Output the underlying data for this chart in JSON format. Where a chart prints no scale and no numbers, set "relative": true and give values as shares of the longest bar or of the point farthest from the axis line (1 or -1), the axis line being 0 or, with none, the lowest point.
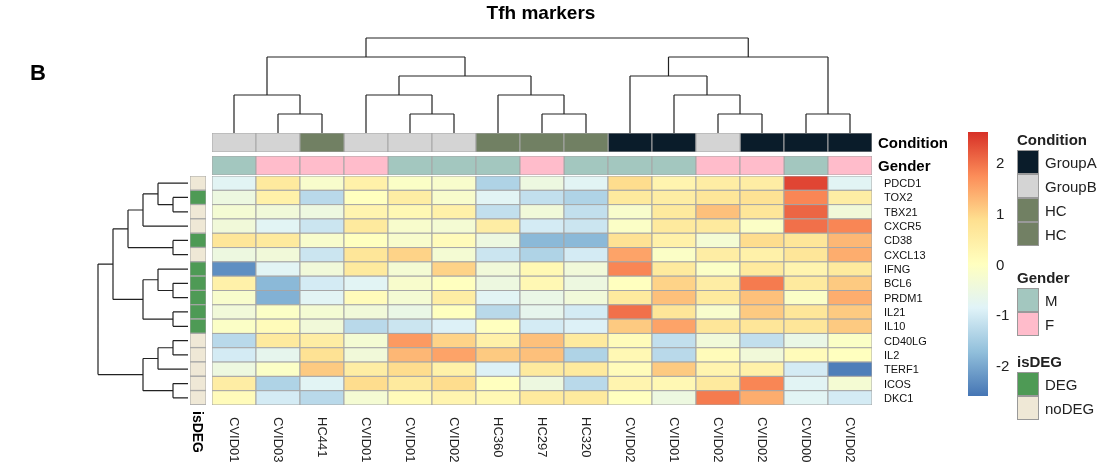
{
  "chart_data": [
    {
      "type": "heatmap",
      "annotations": [
        "B"
      ],
      "categories": [
        "CVID01",
        "CVID03",
        "HC441",
        "CVID01",
        "CVID01",
        "CVID02",
        "HC360",
        "HC297",
        "HC320",
        "CVID02",
        "CVID01",
        "CVID02",
        "CVID02",
        "CVID00",
        "CVID02"
      ],
      "y_categories": [
        "PDCD1",
        "TOX2",
        "TBX21",
        "CXCR5",
        "CD38",
        "CXCL13",
        "IFNG",
        "BCL6",
        "PRDM1",
        "IL21",
        "IL10",
        "CD40LG",
        "IL2",
        "TERF1",
        "ICOS",
        "DKC1"
      ],
      "cells": [
        [
          -0.8,
          0.6,
          -0.2,
          0.4,
          -0.1,
          -0.2,
          -1.4,
          -0.5,
          -0.8,
          0.9,
          0.3,
          0.5,
          0.5,
          2.4,
          -0.8
        ],
        [
          -0.5,
          0.4,
          -1.3,
          0.0,
          0.5,
          -0.2,
          -0.8,
          -1.2,
          -1.4,
          0.6,
          0.5,
          0.7,
          0.8,
          1.8,
          0.5
        ],
        [
          -0.3,
          -0.4,
          -0.5,
          0.3,
          0.2,
          0.4,
          -1.2,
          -0.4,
          -1.2,
          -0.2,
          0.6,
          1.2,
          0.7,
          2.1,
          -0.4
        ],
        [
          -0.4,
          -0.8,
          -1.1,
          0.6,
          -0.2,
          -0.3,
          0.5,
          -1.0,
          -1.1,
          -0.1,
          0.6,
          0.6,
          -0.1,
          2.0,
          1.8
        ],
        [
          0.7,
          0.6,
          -0.2,
          0.0,
          -0.2,
          0.1,
          -0.5,
          -1.8,
          -1.8,
          0.8,
          0.4,
          -0.3,
          0.9,
          0.7,
          1.3
        ],
        [
          -0.5,
          -0.4,
          -1.1,
          0.7,
          1.0,
          -0.3,
          -1.1,
          -1.4,
          -1.0,
          1.5,
          -0.1,
          0.5,
          0.4,
          0.7,
          1.4
        ],
        [
          -2.3,
          -0.8,
          -0.4,
          0.6,
          -0.3,
          1.0,
          -0.4,
          0.2,
          -0.4,
          1.8,
          0.6,
          -0.1,
          0.6,
          0.3,
          0.6
        ],
        [
          0.4,
          -1.8,
          -1.0,
          -0.8,
          -0.2,
          0.0,
          -0.5,
          0.2,
          -0.5,
          0.0,
          1.0,
          0.5,
          1.9,
          0.6,
          1.1
        ],
        [
          -0.2,
          -1.9,
          -0.8,
          0.1,
          -0.3,
          0.5,
          -0.8,
          -0.6,
          -0.4,
          0.6,
          1.2,
          0.6,
          1.2,
          -0.1,
          1.4
        ],
        [
          -0.4,
          -0.1,
          -0.3,
          -0.4,
          -0.6,
          0.0,
          -1.3,
          -0.7,
          -1.0,
          2.0,
          0.7,
          -0.2,
          1.1,
          0.7,
          1.1
        ],
        [
          -0.1,
          0.1,
          -0.4,
          -1.3,
          -1.1,
          -0.9,
          0.0,
          -1.0,
          -0.9,
          1.1,
          1.5,
          0.7,
          0.7,
          0.7,
          1.1
        ],
        [
          -1.3,
          0.6,
          0.5,
          -0.3,
          1.6,
          1.0,
          0.4,
          1.2,
          0.6,
          0.1,
          -1.2,
          -0.4,
          -1.2,
          -0.6,
          -0.1
        ],
        [
          -1.0,
          -0.7,
          0.8,
          -0.4,
          1.3,
          1.5,
          1.1,
          1.2,
          -1.4,
          0.2,
          -1.3,
          0.1,
          -0.4,
          0.1,
          0.0
        ],
        [
          -0.5,
          -0.1,
          1.1,
          0.5,
          0.9,
          0.4,
          -0.9,
          0.6,
          0.6,
          0.1,
          1.1,
          0.3,
          0.4,
          -1.0,
          -2.5
        ],
        [
          0.5,
          -1.4,
          -0.8,
          0.9,
          0.6,
          0.9,
          0.0,
          -0.5,
          -1.3,
          0.3,
          0.2,
          0.6,
          1.8,
          -0.8,
          -0.3
        ],
        [
          0.1,
          -1.0,
          -1.3,
          -0.3,
          0.1,
          0.3,
          0.2,
          0.6,
          0.6,
          0.0,
          -0.5,
          1.9,
          1.4,
          -0.8,
          -1.0
        ]
      ],
      "clim": [
        -2.6,
        2.6
      ],
      "cticks": [
        -2,
        -1,
        0,
        1,
        2
      ]
    },
    {
      "type": "bar",
      "title": "Tfh markers",
      "stacked": true,
      "relative": true,
      "ylabel": "Condition",
      "legend_title": "Condition",
      "legend": "right",
      "categories": [
        null,
        null,
        null,
        null,
        null,
        null,
        null,
        null,
        null,
        null,
        null,
        null,
        null,
        null,
        null
      ],
      "series": [
        {
          "name": "GroupA",
          "color": "#0a1c2a",
          "values": [
            null,
            null,
            null,
            null,
            null,
            null,
            null,
            null,
            null,
            1,
            1,
            null,
            1,
            1,
            1
          ]
        },
        {
          "name": "GroupB",
          "color": "#d4d4d4",
          "values": [
            1,
            1,
            null,
            1,
            1,
            1,
            null,
            null,
            null,
            null,
            null,
            1,
            null,
            null,
            null
          ]
        },
        {
          "name": "HC",
          "color": "#718063",
          "values": [
            null,
            null,
            1,
            null,
            null,
            null,
            1,
            1,
            1,
            null,
            null,
            null,
            null,
            null,
            null
          ]
        },
        {
          "name": "HC",
          "color": "#728064",
          "values": [
            null,
            null,
            null,
            null,
            null,
            null,
            null,
            null,
            null,
            null,
            null,
            null,
            null,
            null,
            null
          ]
        }
      ]
    },
    {
      "type": "bar",
      "stacked": true,
      "relative": true,
      "ylabel": "Gender",
      "legend_title": "Gender",
      "legend": "right",
      "categories": [
        null,
        null,
        null,
        null,
        null,
        null,
        null,
        null,
        null,
        null,
        null,
        null,
        null,
        null,
        null
      ],
      "series": [
        {
          "name": "M",
          "color": "#a3c7bf",
          "values": [
            1,
            null,
            null,
            null,
            1,
            1,
            1,
            null,
            1,
            1,
            1,
            null,
            null,
            1,
            null
          ]
        },
        {
          "name": "F",
          "color": "#ffbccb",
          "values": [
            null,
            1,
            1,
            1,
            null,
            null,
            null,
            1,
            null,
            null,
            null,
            1,
            1,
            null,
            1
          ]
        }
      ]
    },
    {
      "type": "bar",
      "stacked": true,
      "relative": true,
      "orientation": "horizontal",
      "annotations": [
        "isDEG"
      ],
      "legend_title": "isDEG",
      "legend": "right",
      "categories": [
        null,
        null,
        null,
        null,
        null,
        null,
        null,
        null,
        null,
        null,
        null,
        null,
        null,
        null,
        null,
        null
      ],
      "series": [
        {
          "name": "DEG",
          "color": "#4e9a55",
          "values": [
            null,
            1,
            null,
            null,
            1,
            null,
            1,
            1,
            1,
            1,
            1,
            null,
            null,
            null,
            null,
            null
          ]
        },
        {
          "name": "noDEG",
          "color": "#efe8d6",
          "values": [
            1,
            null,
            1,
            1,
            null,
            1,
            null,
            null,
            null,
            null,
            null,
            1,
            1,
            1,
            1,
            1
          ]
        }
      ]
    }
  ]
}
